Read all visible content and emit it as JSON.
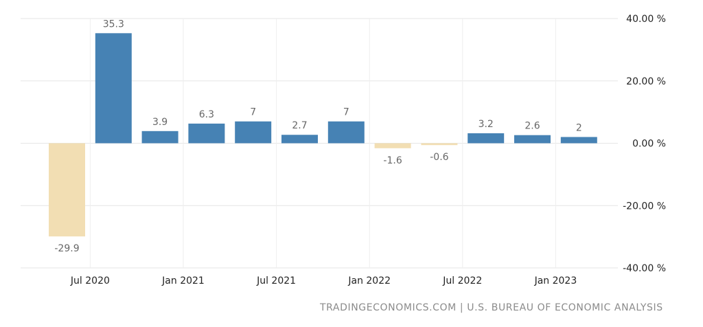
{
  "chart_data": {
    "type": "bar",
    "categories": [
      "Q2 2020",
      "Q3 2020",
      "Q4 2020",
      "Q1 2021",
      "Q2 2021",
      "Q3 2021",
      "Q4 2021",
      "Q1 2022",
      "Q2 2022",
      "Q3 2022",
      "Q4 2022",
      "Q1 2023"
    ],
    "values": [
      -29.9,
      35.3,
      3.9,
      6.3,
      7,
      2.7,
      7,
      -1.6,
      -0.6,
      3.2,
      2.6,
      2
    ],
    "x_ticks": [
      "Jul 2020",
      "Jan 2021",
      "Jul 2021",
      "Jan 2022",
      "Jul 2022",
      "Jan 2023"
    ],
    "y_ticks": [
      "40.00 %",
      "20.00 %",
      "0.00 %",
      "-20.00 %",
      "-40.00 %"
    ],
    "ylim": [
      -40,
      40
    ],
    "grid": true,
    "colors": {
      "positive": "#4682b4",
      "negative": "#f2deb3"
    }
  },
  "source_text": "TRADINGECONOMICS.COM | U.S. BUREAU OF ECONOMIC ANALYSIS"
}
